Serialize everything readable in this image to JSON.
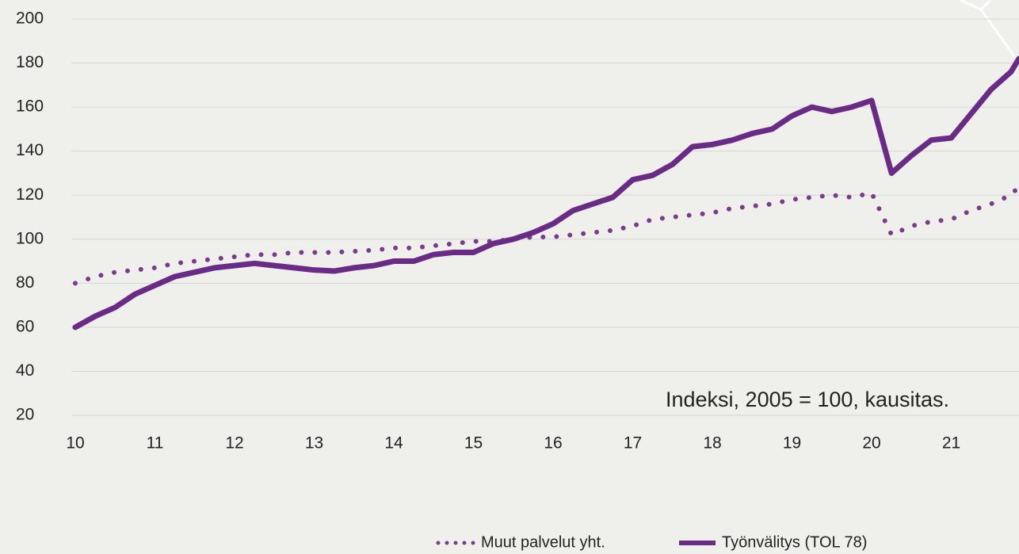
{
  "chart_data": {
    "type": "line",
    "annotation": "Indeksi, 2005 = 100, kausitas.",
    "x": [
      10,
      10.25,
      10.5,
      10.75,
      11,
      11.25,
      11.5,
      11.75,
      12,
      12.25,
      12.5,
      12.75,
      13,
      13.25,
      13.5,
      13.75,
      14,
      14.25,
      14.5,
      14.75,
      15,
      15.25,
      15.5,
      15.75,
      16,
      16.25,
      16.5,
      16.75,
      17,
      17.25,
      17.5,
      17.75,
      18,
      18.25,
      18.5,
      18.75,
      19,
      19.25,
      19.5,
      19.75,
      20,
      20.25,
      20.5,
      20.75,
      21,
      21.25,
      21.5,
      21.75,
      21.85
    ],
    "series": [
      {
        "name": "Muut palvelut yht.",
        "color": "#7a3a90",
        "style": "dotted",
        "values": [
          80,
          83,
          85,
          86,
          87,
          89,
          90,
          91,
          92,
          93,
          93,
          94,
          94,
          94,
          94.5,
          95,
          96,
          96,
          97,
          98,
          99,
          99,
          100,
          101,
          101,
          102,
          103,
          104,
          106,
          109,
          110,
          111,
          112,
          114,
          115,
          116,
          118,
          119,
          120,
          119,
          121,
          102,
          106,
          108,
          109,
          113,
          116,
          120,
          124
        ]
      },
      {
        "name": "Työnvälitys (TOL 78)",
        "color": "#6a2b87",
        "style": "solid",
        "values": [
          60,
          65,
          69,
          75,
          79,
          83,
          85,
          87,
          88,
          89,
          88,
          87,
          86,
          85.5,
          87,
          88,
          90,
          90,
          93,
          94,
          94,
          98,
          100,
          103,
          107,
          113,
          116,
          119,
          127,
          129,
          134,
          142,
          143,
          145,
          148,
          150,
          156,
          160,
          158,
          160,
          163,
          130,
          138,
          145,
          146,
          157,
          168,
          176,
          182
        ]
      }
    ],
    "xlim": [
      10,
      22
    ],
    "xticks": [
      10,
      11,
      12,
      13,
      14,
      15,
      16,
      17,
      18,
      19,
      20,
      21
    ],
    "ylim": [
      20,
      200
    ],
    "yticks": [
      20,
      40,
      60,
      80,
      100,
      120,
      140,
      160,
      180,
      200
    ],
    "grid": true,
    "legend": "bottom"
  }
}
